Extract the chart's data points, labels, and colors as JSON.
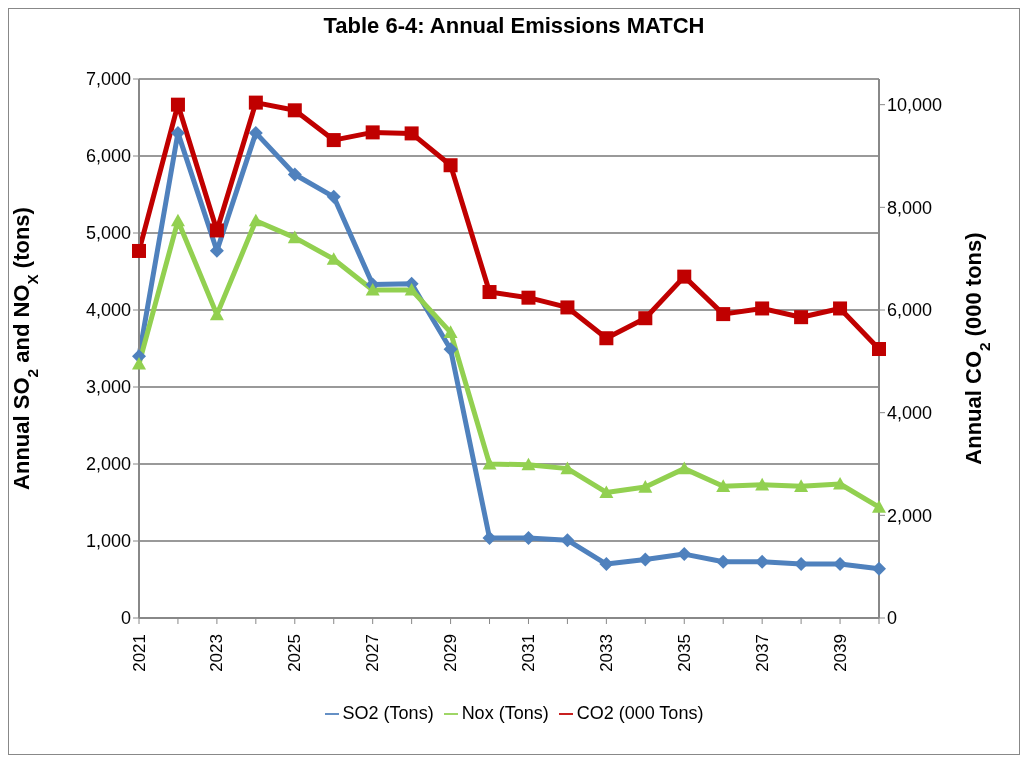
{
  "chart_data": {
    "type": "line",
    "title": "Table 6-4: Annual Emissions MATCH",
    "categories": [
      "2021",
      null,
      "2023",
      null,
      "2025",
      null,
      "2027",
      null,
      "2029",
      null,
      "2031",
      null,
      "2033",
      null,
      "2035",
      null,
      "2037",
      null,
      "2039",
      null
    ],
    "series": [
      {
        "name": "SO2 (Tons)",
        "color": "#4f81bd",
        "marker": "diamond",
        "values": [
          3400,
          6300,
          4770,
          6300,
          5760,
          5470,
          4330,
          4340,
          3490,
          1040,
          1040,
          1010,
          700,
          760,
          830,
          730,
          730,
          700,
          700,
          640
        ]
      },
      {
        "name": "Nox (Tons)",
        "color": "#92d050",
        "marker": "triangle",
        "values": [
          3300,
          5160,
          3940,
          5160,
          4940,
          4660,
          4260,
          4260,
          3710,
          2000,
          1990,
          1940,
          1630,
          1700,
          1940,
          1710,
          1730,
          1710,
          1740,
          1440
        ]
      },
      {
        "name": "CO2 (000 Tons)",
        "color": "#c00000",
        "marker": "square",
        "axis": "y2",
        "values": [
          7150,
          10000,
          7550,
          10040,
          9890,
          9310,
          9460,
          9440,
          8820,
          6350,
          6240,
          6050,
          5450,
          5840,
          6650,
          5920,
          6030,
          5860,
          6030,
          5240
        ]
      }
    ],
    "ylabel": "Annual SO$_{2}$ and NO$_{X}$ (tons)",
    "y2label": "Annual CO$_{2}$ (000 tons)",
    "ylim": [
      0,
      7000
    ],
    "yticks": [
      {
        "value": 0,
        "label": "0"
      },
      {
        "value": 1000,
        "label": "1,000"
      },
      {
        "value": 2000,
        "label": "2,000"
      },
      {
        "value": 3000,
        "label": "3,000"
      },
      {
        "value": 4000,
        "label": "4,000"
      },
      {
        "value": 5000,
        "label": "5,000"
      },
      {
        "value": 6000,
        "label": "6,000"
      },
      {
        "value": 7000,
        "label": "7,000"
      }
    ],
    "y2lim": [
      0,
      10500
    ],
    "y2ticks": [
      {
        "value": 0,
        "label": "0"
      },
      {
        "value": 2000,
        "label": "2,000"
      },
      {
        "value": 4000,
        "label": "4,000"
      },
      {
        "value": 6000,
        "label": "6,000"
      },
      {
        "value": 8000,
        "label": "8,000"
      },
      {
        "value": 10000,
        "label": "10,000"
      }
    ],
    "grid": "y",
    "legend": "bottom",
    "line_style": "solid"
  }
}
